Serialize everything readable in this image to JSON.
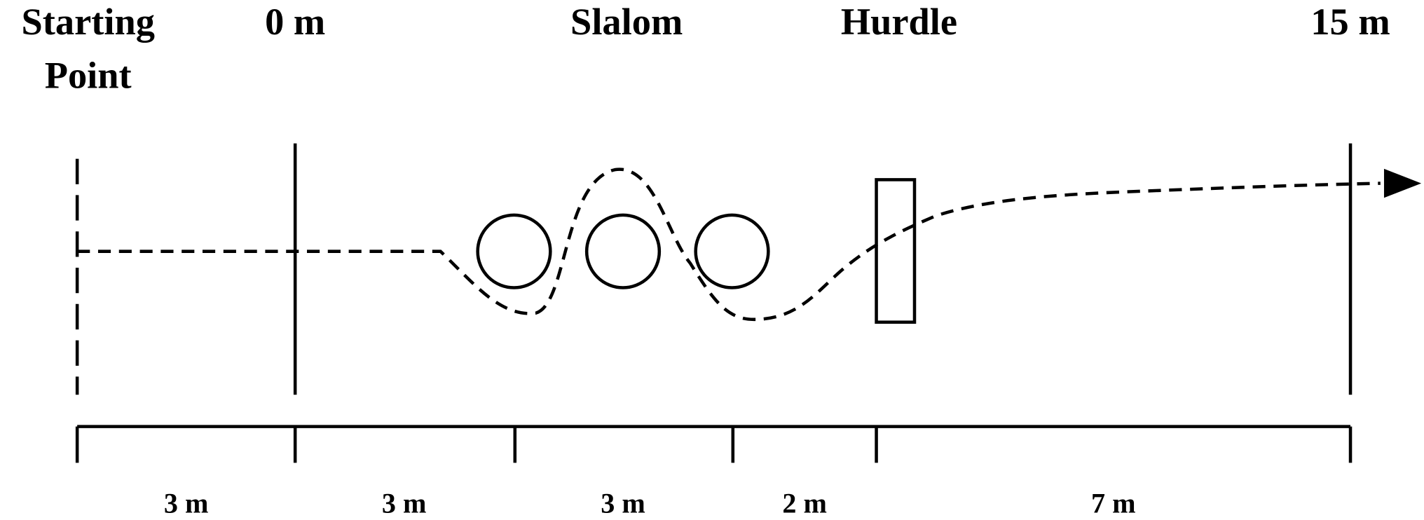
{
  "top_labels": {
    "start": [
      "Starting",
      "Point"
    ],
    "zero": "0 m",
    "slalom": "Slalom",
    "hurdle": "Hurdle",
    "finish": "15 m"
  },
  "segments": [
    "3 m",
    "3 m",
    "3 m",
    "2 m",
    "7 m"
  ]
}
